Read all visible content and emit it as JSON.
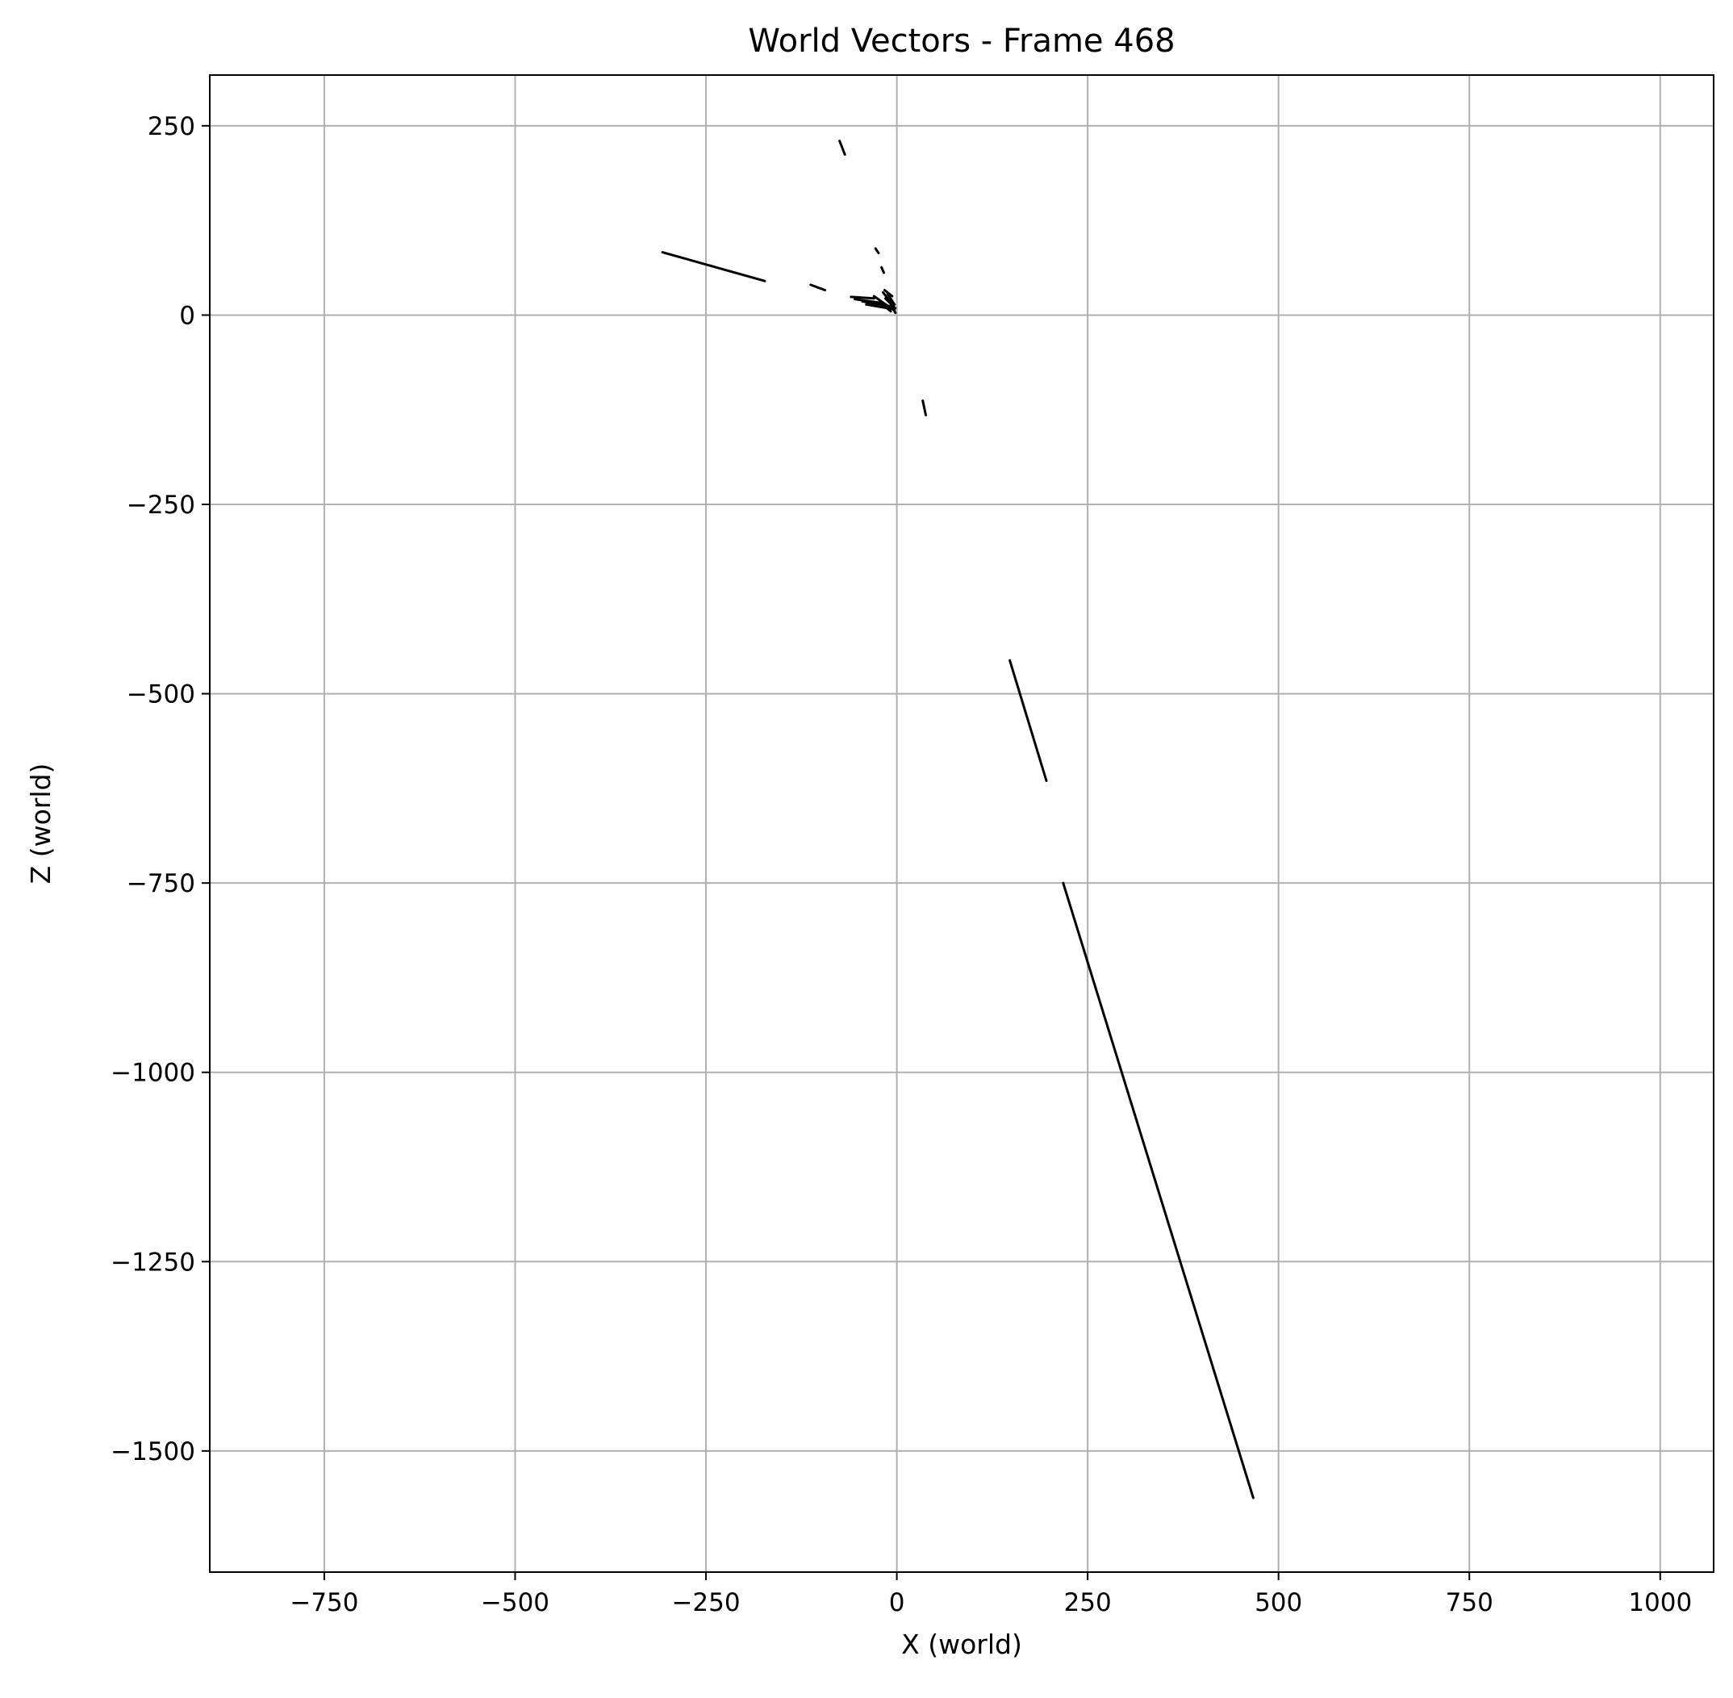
{
  "chart_data": {
    "type": "line",
    "title": "World Vectors - Frame 468",
    "xlabel": "X (world)",
    "ylabel": "Z (world)",
    "xlim": [
      -900,
      1070
    ],
    "ylim": [
      -1660,
      317
    ],
    "xticks": [
      -750,
      -500,
      -250,
      0,
      250,
      500,
      750,
      1000
    ],
    "yticks": [
      250,
      0,
      -250,
      -500,
      -750,
      -1000,
      -1250,
      -1500
    ],
    "xtick_labels": [
      "−750",
      "−500",
      "−250",
      "0",
      "250",
      "500",
      "750",
      "1000"
    ],
    "ytick_labels": [
      "250",
      "0",
      "−250",
      "−500",
      "−750",
      "−1000",
      "−1250",
      "−1500"
    ],
    "grid": true,
    "line_color": "#000000",
    "grid_color": "#b0b0b0",
    "series": [
      {
        "x": [
          218,
          467
        ],
        "y": [
          -750,
          -1562
        ]
      },
      {
        "x": [
          148,
          196
        ],
        "y": [
          -456,
          -615
        ]
      },
      {
        "x": [
          -307,
          -173
        ],
        "y": [
          83,
          45
        ]
      },
      {
        "x": [
          -113,
          -94
        ],
        "y": [
          40,
          33
        ]
      },
      {
        "x": [
          -75,
          -68
        ],
        "y": [
          230,
          212
        ]
      },
      {
        "x": [
          34,
          38
        ],
        "y": [
          -113,
          -132
        ]
      },
      {
        "x": [
          -28,
          -24
        ],
        "y": [
          88,
          82
        ]
      },
      {
        "x": [
          -20,
          -17
        ],
        "y": [
          63,
          56
        ]
      },
      {
        "x": [
          -60,
          -30
        ],
        "y": [
          24,
          22
        ]
      },
      {
        "x": [
          -45,
          -10
        ],
        "y": [
          18,
          12
        ]
      },
      {
        "x": [
          -40,
          -5
        ],
        "y": [
          14,
          8
        ]
      },
      {
        "x": [
          -30,
          -3
        ],
        "y": [
          25,
          6
        ]
      },
      {
        "x": [
          -18,
          -4
        ],
        "y": [
          30,
          12
        ]
      },
      {
        "x": [
          -22,
          -8
        ],
        "y": [
          17,
          5
        ]
      },
      {
        "x": [
          -15,
          -2
        ],
        "y": [
          22,
          9
        ]
      },
      {
        "x": [
          -12,
          -3
        ],
        "y": [
          28,
          14
        ]
      },
      {
        "x": [
          -55,
          -20
        ],
        "y": [
          21,
          16
        ]
      },
      {
        "x": [
          -8,
          -2
        ],
        "y": [
          15,
          3
        ]
      },
      {
        "x": [
          -16,
          -6
        ],
        "y": [
          33,
          25
        ]
      }
    ]
  }
}
